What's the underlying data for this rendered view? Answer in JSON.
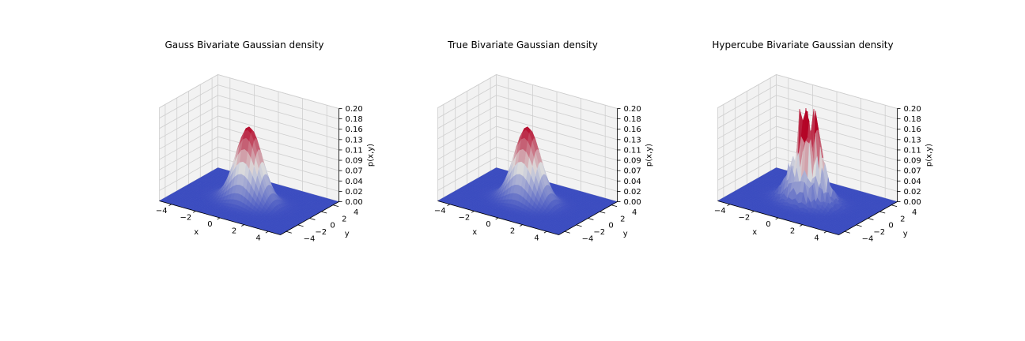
{
  "figure": {
    "background": "#ffffff"
  },
  "style": {
    "pane_fill": "#f2f2f2",
    "pane_edge": "#d0d0d0",
    "grid_color": "#cfcfcf",
    "cmap_low": "#3b4cc0",
    "cmap_mid": "#dddddd",
    "cmap_high": "#b40426"
  },
  "chart_data": [
    {
      "type": "surface3d",
      "variant": "smooth",
      "title": "Gauss Bivariate Gaussian density",
      "xlabel": "x",
      "ylabel": "y",
      "zlabel": "p(x,y)",
      "xlim": [
        -5,
        5
      ],
      "ylim": [
        -5,
        5
      ],
      "zlim": [
        0,
        0.2
      ],
      "xticks": [
        "−4",
        "−2",
        "0",
        "2",
        "4"
      ],
      "yticks": [
        "−4",
        "−2",
        "0",
        "2",
        "4"
      ],
      "zticks": [
        "0.00",
        "0.02",
        "0.04",
        "0.07",
        "0.09",
        "0.11",
        "0.13",
        "0.16",
        "0.18",
        "0.20"
      ],
      "peak": 0.16,
      "sigma": 1.0,
      "colormap": "coolwarm"
    },
    {
      "type": "surface3d",
      "variant": "smooth",
      "title": "True Bivariate Gaussian density",
      "xlabel": "x",
      "ylabel": "y",
      "zlabel": "p(x,y)",
      "xlim": [
        -5,
        5
      ],
      "ylim": [
        -5,
        5
      ],
      "zlim": [
        0,
        0.2
      ],
      "xticks": [
        "−4",
        "−2",
        "0",
        "2",
        "4"
      ],
      "yticks": [
        "−4",
        "−2",
        "0",
        "2",
        "4"
      ],
      "zticks": [
        "0.00",
        "0.02",
        "0.04",
        "0.07",
        "0.09",
        "0.11",
        "0.13",
        "0.16",
        "0.18",
        "0.20"
      ],
      "peak": 0.16,
      "sigma": 1.0,
      "colormap": "coolwarm"
    },
    {
      "type": "surface3d",
      "variant": "noisy",
      "title": "Hypercube Bivariate Gaussian density",
      "xlabel": "x",
      "ylabel": "y",
      "zlabel": "p(x,y)",
      "xlim": [
        -5,
        5
      ],
      "ylim": [
        -5,
        5
      ],
      "zlim": [
        0,
        0.2
      ],
      "xticks": [
        "−4",
        "−2",
        "0",
        "2",
        "4"
      ],
      "yticks": [
        "−4",
        "−2",
        "0",
        "2",
        "4"
      ],
      "zticks": [
        "0.00",
        "0.02",
        "0.04",
        "0.07",
        "0.09",
        "0.11",
        "0.13",
        "0.16",
        "0.18",
        "0.20"
      ],
      "peak": 0.16,
      "sigma": 1.0,
      "colormap": "coolwarm"
    }
  ]
}
